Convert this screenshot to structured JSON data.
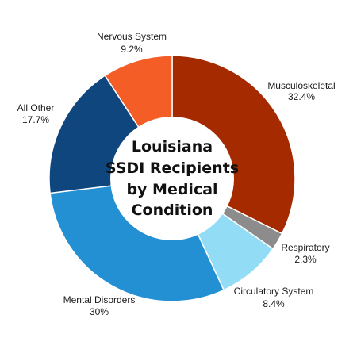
{
  "chart_data": {
    "type": "pie",
    "title_lines": [
      "Louisiana",
      "SSDI Recipients",
      "by Medical",
      "Condition"
    ],
    "slices": [
      {
        "name": "Musculoskeletal",
        "value_label": "32.4%",
        "value": 32.4,
        "color": "#a52a00"
      },
      {
        "name": "Respiratory",
        "value_label": "2.3%",
        "value": 2.3,
        "color": "#8c8c8c"
      },
      {
        "name": "Circulatory System",
        "value_label": "8.4%",
        "value": 8.4,
        "color": "#93dcf6"
      },
      {
        "name": "Mental Disorders",
        "value_label": "30%",
        "value": 30.0,
        "color": "#2490d4"
      },
      {
        "name": "All Other",
        "value_label": "17.7%",
        "value": 17.7,
        "color": "#0f467e"
      },
      {
        "name": "Nervous System",
        "value_label": "9.2%",
        "value": 9.2,
        "color": "#f45d26"
      }
    ]
  }
}
